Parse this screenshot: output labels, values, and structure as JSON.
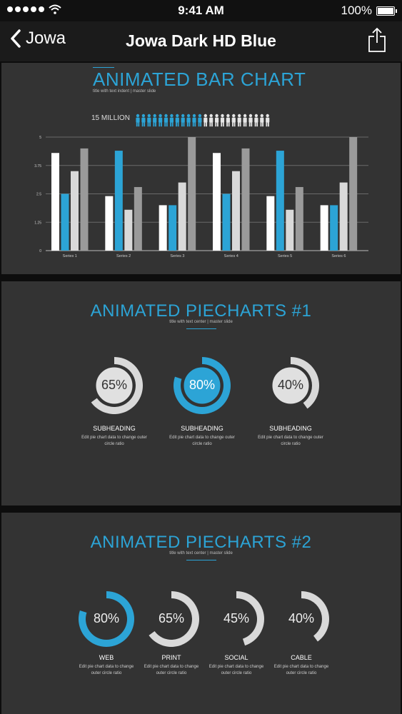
{
  "status": {
    "time": "9:41 AM",
    "battery": "100%"
  },
  "nav": {
    "back_label": "Jowa",
    "title": "Jowa Dark HD Blue"
  },
  "bar_section": {
    "title": "ANIMATED BAR CHART",
    "subtitle": "title with text indent  |  master slide",
    "people_label": "15 MILLION",
    "people_total": 24,
    "people_highlighted": 12
  },
  "chart_data": {
    "type": "bar",
    "categories": [
      "Series 1",
      "Series 2",
      "Series 3",
      "Series 4",
      "Series 5",
      "Series 6"
    ],
    "ylim": [
      0,
      5
    ],
    "yticks": [
      "0",
      "1.25",
      "2.5",
      "3.75",
      "5"
    ],
    "series": [
      {
        "values": [
          4.3,
          2.4,
          2.0,
          4.3,
          2.4,
          2.0
        ],
        "color": "#ffffff"
      },
      {
        "values": [
          2.5,
          4.4,
          2.0,
          2.5,
          4.4,
          2.0
        ],
        "color": "#2ca4d6"
      },
      {
        "values": [
          3.5,
          1.8,
          3.0,
          3.5,
          1.8,
          3.0
        ],
        "color": "#d9d9d9"
      },
      {
        "values": [
          4.5,
          2.8,
          5.0,
          4.5,
          2.8,
          5.0
        ],
        "color": "#9a9a9a"
      }
    ]
  },
  "pie1": {
    "title": "ANIMATED PIECHARTS #1",
    "subtitle": "title with text center  |  master slide",
    "items": [
      {
        "percent": "65%",
        "value": 0.65,
        "color": "#d9d9d9",
        "heading": "SUBHEADING",
        "desc": "Edit pie chart data to change outer circle ratio"
      },
      {
        "percent": "80%",
        "value": 0.8,
        "color": "#2ca4d6",
        "heading": "SUBHEADING",
        "desc": "Edit pie chart data to change outer circle ratio"
      },
      {
        "percent": "40%",
        "value": 0.4,
        "color": "#d9d9d9",
        "heading": "SUBHEADING",
        "desc": "Edit pie chart data to change outer circle ratio"
      }
    ]
  },
  "pie2": {
    "title": "ANIMATED PIECHARTS #2",
    "subtitle": "title with text center  |  master slide",
    "items": [
      {
        "percent": "80%",
        "value": 0.8,
        "color": "#2ca4d6",
        "heading": "WEB",
        "desc": "Edit pie chart data to change outer circle ratio"
      },
      {
        "percent": "65%",
        "value": 0.65,
        "color": "#d9d9d9",
        "heading": "PRINT",
        "desc": "Edit pie chart data to change outer circle ratio"
      },
      {
        "percent": "45%",
        "value": 0.45,
        "color": "#d9d9d9",
        "heading": "SOCIAL",
        "desc": "Edit pie chart data to change outer circle ratio"
      },
      {
        "percent": "40%",
        "value": 0.4,
        "color": "#d9d9d9",
        "heading": "CABLE",
        "desc": "Edit pie chart data to change outer circle ratio"
      }
    ]
  },
  "colors": {
    "accent": "#2ca4d6",
    "panel": "#333333",
    "background": "#0d0d0d"
  }
}
